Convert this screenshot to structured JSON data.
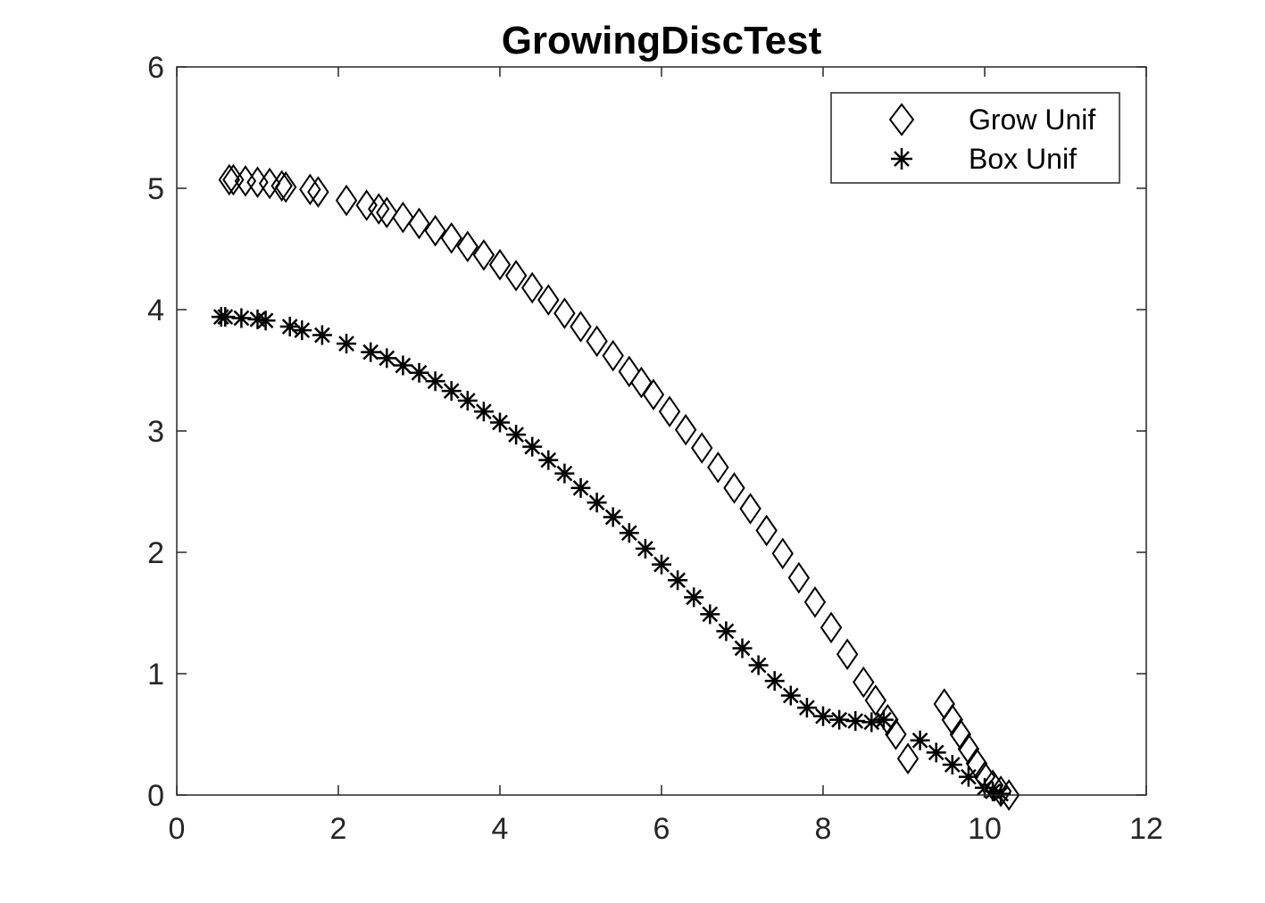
{
  "chart_data": {
    "type": "scatter",
    "title": "GrowingDiscTest",
    "xlabel": "",
    "ylabel": "",
    "xlim": [
      0,
      12
    ],
    "ylim": [
      0,
      6
    ],
    "xticks": [
      "0",
      "2",
      "4",
      "6",
      "8",
      "10",
      "12"
    ],
    "yticks": [
      "0",
      "1",
      "2",
      "3",
      "4",
      "5",
      "6"
    ],
    "grid": false,
    "legend_position": "top-right",
    "colors": {
      "marker": "#000000",
      "axis": "#262626",
      "background": "#ffffff"
    },
    "series": [
      {
        "name": "Grow Unif",
        "marker": "diamond",
        "x": [
          0.65,
          0.7,
          0.85,
          1.0,
          1.15,
          1.3,
          1.35,
          1.65,
          1.75,
          2.1,
          2.35,
          2.5,
          2.6,
          2.8,
          3.0,
          3.2,
          3.4,
          3.6,
          3.8,
          4.0,
          4.2,
          4.4,
          4.6,
          4.8,
          5.0,
          5.2,
          5.4,
          5.6,
          5.75,
          5.9,
          6.1,
          6.3,
          6.5,
          6.7,
          6.9,
          7.1,
          7.3,
          7.5,
          7.7,
          7.9,
          8.1,
          8.3,
          8.5,
          8.65,
          8.8,
          8.9,
          9.05,
          9.5,
          9.6,
          9.7,
          9.8,
          9.9,
          10.0,
          10.1,
          10.2,
          10.3
        ],
        "y": [
          5.07,
          5.07,
          5.06,
          5.05,
          5.04,
          5.02,
          5.01,
          4.99,
          4.97,
          4.9,
          4.86,
          4.83,
          4.8,
          4.76,
          4.71,
          4.65,
          4.59,
          4.52,
          4.45,
          4.37,
          4.28,
          4.18,
          4.08,
          3.97,
          3.86,
          3.74,
          3.62,
          3.49,
          3.4,
          3.3,
          3.16,
          3.01,
          2.86,
          2.7,
          2.53,
          2.36,
          2.18,
          1.99,
          1.79,
          1.59,
          1.38,
          1.16,
          0.93,
          0.78,
          0.62,
          0.5,
          0.3,
          0.75,
          0.62,
          0.5,
          0.38,
          0.26,
          0.15,
          0.08,
          0.03,
          0.0
        ]
      },
      {
        "name": "Box Unif",
        "marker": "asterisk",
        "x": [
          0.55,
          0.6,
          0.8,
          1.0,
          1.1,
          1.4,
          1.55,
          1.8,
          2.1,
          2.4,
          2.6,
          2.8,
          3.0,
          3.2,
          3.4,
          3.6,
          3.8,
          4.0,
          4.2,
          4.4,
          4.6,
          4.8,
          5.0,
          5.2,
          5.4,
          5.6,
          5.8,
          6.0,
          6.2,
          6.4,
          6.6,
          6.8,
          7.0,
          7.2,
          7.4,
          7.6,
          7.8,
          8.0,
          8.2,
          8.4,
          8.6,
          8.75,
          9.2,
          9.4,
          9.6,
          9.8,
          10.0,
          10.1,
          10.2
        ],
        "y": [
          3.94,
          3.94,
          3.93,
          3.92,
          3.91,
          3.86,
          3.83,
          3.79,
          3.72,
          3.65,
          3.6,
          3.54,
          3.48,
          3.41,
          3.33,
          3.25,
          3.16,
          3.07,
          2.97,
          2.87,
          2.76,
          2.65,
          2.53,
          2.41,
          2.29,
          2.16,
          2.03,
          1.9,
          1.77,
          1.63,
          1.49,
          1.35,
          1.21,
          1.07,
          0.94,
          0.82,
          0.72,
          0.65,
          0.62,
          0.61,
          0.6,
          0.62,
          0.45,
          0.35,
          0.25,
          0.15,
          0.06,
          0.03,
          0.01
        ]
      }
    ]
  }
}
